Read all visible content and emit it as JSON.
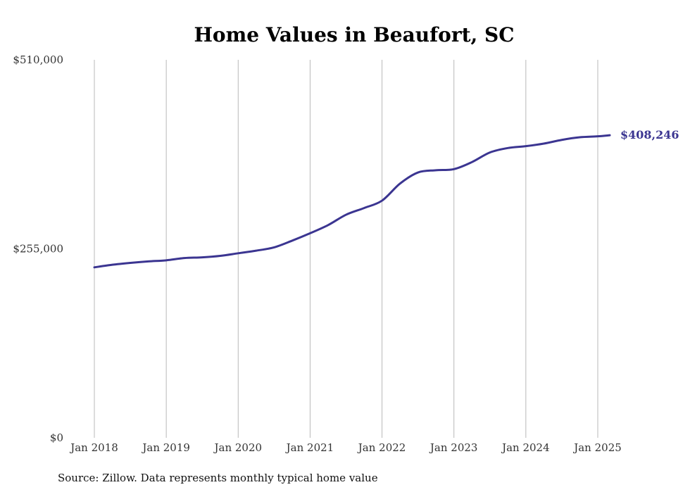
{
  "chart_data": {
    "type": "line",
    "title": "Home Values in Beaufort, SC",
    "xlabel": "",
    "ylabel": "",
    "ylim": [
      0,
      510000
    ],
    "yticks": [
      0,
      255000,
      510000
    ],
    "ytick_labels": [
      "$0",
      "$255,000",
      "$510,000"
    ],
    "xticks": [
      "2018-01",
      "2019-01",
      "2020-01",
      "2021-01",
      "2022-01",
      "2023-01",
      "2024-01",
      "2025-01"
    ],
    "xtick_labels": [
      "Jan 2018",
      "Jan 2019",
      "Jan 2020",
      "Jan 2021",
      "Jan 2022",
      "Jan 2023",
      "Jan 2024",
      "Jan 2025"
    ],
    "grid": "vertical",
    "legend": "none",
    "series": [
      {
        "color": "#3b3591",
        "x": [
          "2018-01",
          "2018-04",
          "2018-07",
          "2018-10",
          "2019-01",
          "2019-04",
          "2019-07",
          "2019-10",
          "2020-01",
          "2020-04",
          "2020-07",
          "2020-10",
          "2021-01",
          "2021-04",
          "2021-07",
          "2021-10",
          "2022-01",
          "2022-04",
          "2022-07",
          "2022-10",
          "2023-01",
          "2023-04",
          "2023-07",
          "2023-10",
          "2024-01",
          "2024-04",
          "2024-07",
          "2024-10",
          "2025-01",
          "2025-03"
        ],
        "values": [
          230000,
          233500,
          236000,
          238000,
          239500,
          242500,
          243500,
          245500,
          249000,
          252500,
          257000,
          266000,
          276000,
          287000,
          301000,
          310000,
          320000,
          343000,
          358000,
          361000,
          362500,
          372000,
          385000,
          391000,
          393500,
          397000,
          402000,
          405500,
          406800,
          408246
        ]
      }
    ],
    "end_label": "$408,246"
  },
  "footer": {
    "source": "Source: Zillow. Data represents monthly typical home value"
  }
}
